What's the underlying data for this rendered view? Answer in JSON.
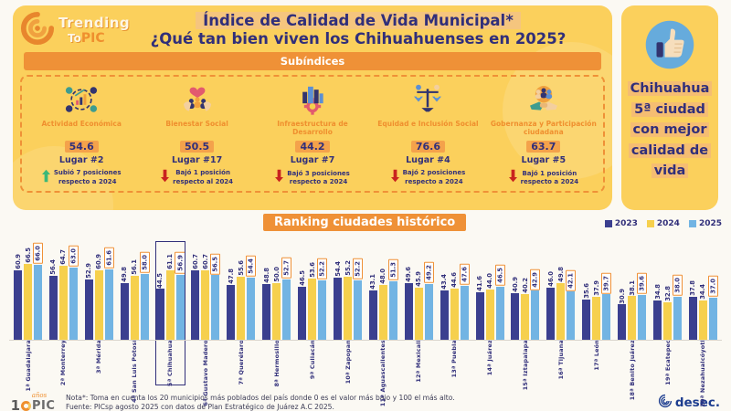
{
  "header": {
    "brand_line1": "Trending",
    "brand_line2": "To",
    "brand_pic": "PIC",
    "title_line1": "Índice de Calidad de Vida Municipal*",
    "title_line2": "¿Qué tan bien viven los Chihuahuenses en 2025?",
    "subindices_banner": "Subíndices"
  },
  "subindices": [
    {
      "name": "Actividad Económica",
      "value": "54.6",
      "rank": "Lugar #2",
      "trend": "up",
      "change_line1": "Subió 7 posiciones",
      "change_line2": "respecto a 2024",
      "icon": "economy-icon"
    },
    {
      "name": "Bienestar Social",
      "value": "50.5",
      "rank": "Lugar #17",
      "trend": "down",
      "change_line1": "Bajó 1 posición",
      "change_line2": "respecto al 2024",
      "icon": "social-wellbeing-icon"
    },
    {
      "name": "Infraestructura de Desarrollo",
      "value": "44.2",
      "rank": "Lugar #7",
      "trend": "down",
      "change_line1": "Bajó 3 posiciones",
      "change_line2": "respecto a 2024",
      "icon": "infrastructure-icon"
    },
    {
      "name": "Equidad e Inclusión Social",
      "value": "76.6",
      "rank": "Lugar #4",
      "trend": "down",
      "change_line1": "Bajó 2 posiciones",
      "change_line2": "respecto a 2024",
      "icon": "equity-icon"
    },
    {
      "name": "Gobernanza y Participación ciudadana",
      "value": "63.7",
      "rank": "Lugar #5",
      "trend": "down",
      "change_line1": "Bajó 1 posición",
      "change_line2": "respecto a 2024",
      "icon": "governance-icon"
    }
  ],
  "highlight": {
    "lines": [
      "Chihuahua",
      "5ª ciudad",
      "con mejor",
      "calidad de",
      "vida"
    ]
  },
  "chart_data": {
    "type": "bar",
    "title": "Ranking ciudades histórico",
    "legend": [
      "2023",
      "2024",
      "2025"
    ],
    "legend_position": "top-right",
    "grid": false,
    "ylim": [
      0,
      70
    ],
    "colors": {
      "2023": "#3b3f8f",
      "2024": "#f6d04d",
      "2025": "#72b4e3"
    },
    "categories": [
      "1ª Guadalajara",
      "2ª Monterrey",
      "3ª Mérida",
      "4ª San Luis Potosí",
      "5ª Chihuahua",
      "6ª Gustavo Madero",
      "7ª Querétaro",
      "8ª Hermosillo",
      "9ª Culiacán",
      "10ª Zapopan",
      "11ª Aguascalientes",
      "12ª Mexicali",
      "13ª Puebla",
      "14ª Juárez",
      "15ª Iztapalapa",
      "16ª Tijuana",
      "17ª León",
      "18ª Benito Juárez",
      "19ª Ecatepec",
      "20ª Nezahualcóyotl"
    ],
    "highlighted_category": "5ª Chihuahua",
    "series": [
      {
        "name": "2023",
        "values": [
          60.9,
          56.4,
          52.9,
          49.8,
          44.5,
          60.7,
          47.8,
          48.8,
          46.5,
          54.4,
          43.1,
          49.6,
          43.4,
          41.6,
          40.9,
          46.0,
          35.6,
          30.9,
          34.8,
          37.8
        ]
      },
      {
        "name": "2024",
        "values": [
          66.5,
          64.7,
          60.9,
          56.1,
          61.1,
          60.7,
          55.6,
          50.0,
          53.6,
          55.2,
          48.0,
          45.9,
          44.6,
          44.0,
          40.2,
          49.8,
          37.9,
          38.1,
          32.8,
          34.4
        ]
      },
      {
        "name": "2025",
        "values": [
          66.0,
          63.0,
          61.6,
          58.0,
          56.9,
          56.5,
          54.4,
          52.7,
          52.2,
          52.2,
          51.3,
          49.2,
          47.6,
          46.5,
          42.9,
          42.1,
          39.7,
          39.6,
          38.0,
          37.0
        ]
      }
    ]
  },
  "footer": {
    "note": "Nota*: Toma en cuenta los 20 municipios más poblados del país donde 0 es el valor más bajo y 100 el más alto.",
    "source": "Fuente:  PICsp agosto 2025 con datos de Plan Estratégico de Juárez A.C 2025.",
    "pic_logo": {
      "num": "1",
      "pic": "PIC",
      "anios": "años"
    },
    "brand": "desec."
  },
  "theme": {
    "panel_yellow": "#fbd05c",
    "accent_orange": "#ef9137",
    "navy": "#312f7a",
    "up_green": "#3cb878",
    "down_red": "#c9231f"
  }
}
